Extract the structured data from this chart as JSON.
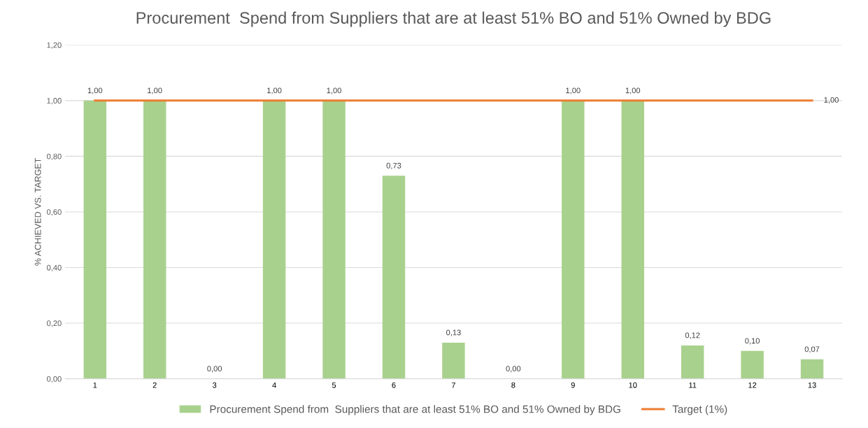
{
  "chart_data": {
    "type": "bar",
    "title": "Procurement  Spend from Suppliers that are at least 51% BO and 51% Owned by BDG",
    "ylabel": "% ACHIEVED VS. TARGET",
    "categories": [
      "1",
      "2",
      "3",
      "4",
      "5",
      "6",
      "7",
      "8",
      "9",
      "10",
      "11",
      "12",
      "13"
    ],
    "series": [
      {
        "name": "Procurement Spend from  Suppliers that are at least 51% BO and 51% Owned by BDG",
        "color": "#a9d18e",
        "values": [
          1.0,
          1.0,
          0.0,
          1.0,
          1.0,
          0.73,
          0.13,
          0.0,
          1.0,
          1.0,
          0.12,
          0.1,
          0.07
        ],
        "value_labels": [
          "1,00",
          "1,00",
          "0,00",
          "1,00",
          "1,00",
          "0,73",
          "0,13",
          "0,00",
          "1,00",
          "1,00",
          "0,12",
          "0,10",
          "0,07"
        ]
      },
      {
        "name": "Target (1%)",
        "type": "line",
        "color": "#ed7d31",
        "values": [
          1.0,
          1.0,
          1.0,
          1.0,
          1.0,
          1.0,
          1.0,
          1.0,
          1.0,
          1.0,
          1.0,
          1.0,
          1.0
        ],
        "value_labels": [
          null,
          null,
          null,
          null,
          null,
          null,
          null,
          null,
          null,
          null,
          null,
          null,
          "1,00"
        ]
      }
    ],
    "ylim": [
      0,
      1.2
    ],
    "yticks": [
      {
        "value": 0,
        "label": "0,00"
      },
      {
        "value": 0.2,
        "label": "0,20"
      },
      {
        "value": 0.4,
        "label": "0,40"
      },
      {
        "value": 0.6,
        "label": "0,60"
      },
      {
        "value": 0.8,
        "label": "0,80"
      },
      {
        "value": 1.0,
        "label": "1,00"
      },
      {
        "value": 1.2,
        "label": "1,20"
      }
    ],
    "grid": "y",
    "legend": "bottom"
  }
}
